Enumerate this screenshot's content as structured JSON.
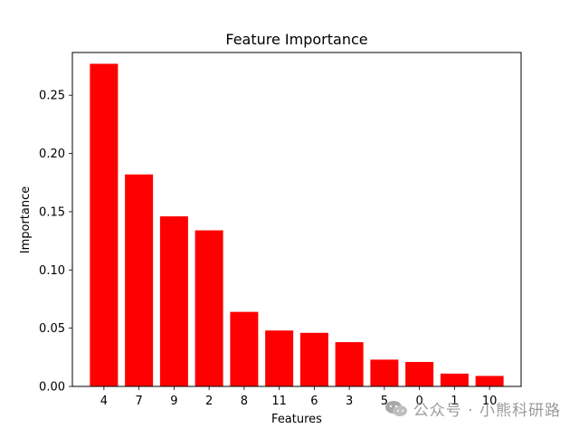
{
  "chart_data": {
    "type": "bar",
    "title": "Feature Importance",
    "xlabel": "Features",
    "ylabel": "Importance",
    "categories": [
      "4",
      "7",
      "9",
      "2",
      "8",
      "11",
      "6",
      "3",
      "5",
      "0",
      "1",
      "10"
    ],
    "values": [
      0.277,
      0.182,
      0.146,
      0.134,
      0.064,
      0.048,
      0.046,
      0.038,
      0.023,
      0.021,
      0.011,
      0.009
    ],
    "ylim": [
      0,
      0.2867
    ],
    "yticks": [
      0.0,
      0.05,
      0.1,
      0.15,
      0.2,
      0.25
    ],
    "ytick_labels": [
      "0.00",
      "0.05",
      "0.10",
      "0.15",
      "0.20",
      "0.25"
    ],
    "bar_color": "#ff0000",
    "grid": false,
    "legend": "none"
  },
  "watermark": {
    "text": "公众号 · 小熊科研路",
    "icon": "wechat-icon"
  }
}
